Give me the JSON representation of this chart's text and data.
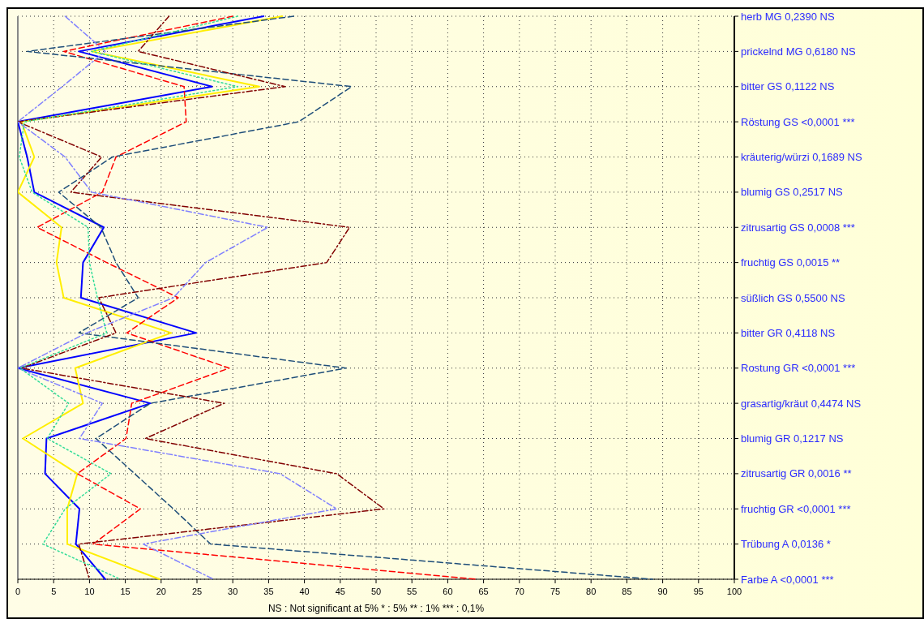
{
  "chart_data": {
    "type": "line",
    "orientation": "horizontal",
    "categories": [
      "herb MG 0,2390 NS",
      "prickelnd MG 0,6180 NS",
      "bitter GS 0,1122 NS",
      "Röstung GS <0,0001 ***",
      "kräuterig/würzi 0,1689 NS",
      "blumig GS 0,2517 NS",
      "zitrusartig GS 0,0008 ***",
      "fruchtig GS 0,0015 **",
      "süßlich GS 0,5500 NS",
      "bitter GR 0,4118 NS",
      "Rostung GR <0,0001 ***",
      "grasartig/kräut 0,4474 NS",
      "blumig GR 0,1217 NS",
      "zitrusartig GR 0,0016 **",
      "fruchtig GR  <0,0001 ***",
      "Trübung A 0,0136 *",
      "Farbe A <0,0001 ***"
    ],
    "series": [
      {
        "color": "#0000ff",
        "line_style": "solid",
        "values": [
          34.3,
          8.5,
          27.1,
          0,
          1.3,
          2.3,
          12,
          9.1,
          8.8,
          24.9,
          0,
          18.5,
          4,
          3.8,
          8.6,
          8.1,
          12.2
        ]
      },
      {
        "color": "#ffee00",
        "line_style": "solid",
        "values": [
          36.9,
          10.3,
          33.7,
          0.5,
          2.3,
          0,
          6.1,
          5.4,
          6.4,
          21.4,
          8,
          9.1,
          0.7,
          8.3,
          6.9,
          6.9,
          19.8
        ]
      },
      {
        "color": "#ff0000",
        "line_style": "dashed",
        "values": [
          30,
          6.4,
          23.2,
          23.5,
          13.7,
          11.8,
          2.7,
          12.4,
          22.4,
          15.2,
          29.5,
          15.9,
          15.1,
          8.3,
          17.1,
          10.5,
          64
        ]
      },
      {
        "color": "#1f4e79",
        "line_style": "dashed",
        "values": [
          38.5,
          1.3,
          46.6,
          39.2,
          13.2,
          5.7,
          11.6,
          13.7,
          16.8,
          8.5,
          45.8,
          18.5,
          10.9,
          16.3,
          21.7,
          26.9,
          88.6
        ]
      },
      {
        "color": "#800000",
        "line_style": "dashdot",
        "values": [
          21.1,
          16.8,
          37.3,
          0,
          11.7,
          7.4,
          46.3,
          43.1,
          11.3,
          13.7,
          0.5,
          28.8,
          17.8,
          44.5,
          51.1,
          8.5,
          10
        ]
      },
      {
        "color": "#8080ff",
        "line_style": "dashdot",
        "values": [
          6.6,
          12.2,
          6.2,
          0,
          6.6,
          10.3,
          34.9,
          26.2,
          21.7,
          9.6,
          0,
          11.8,
          8.6,
          36.6,
          44.5,
          17.5,
          27.3
        ]
      },
      {
        "color": "#33dd99",
        "line_style": "dotted",
        "values": [
          30.7,
          10.3,
          30.7,
          0.9,
          0.2,
          2,
          9.8,
          10,
          11.1,
          12.4,
          0.3,
          7.1,
          4.1,
          13,
          6.6,
          3.5,
          14.3
        ]
      }
    ],
    "xlim": [
      0,
      100
    ],
    "xticks": [
      0,
      5,
      10,
      15,
      20,
      25,
      30,
      35,
      40,
      45,
      50,
      55,
      60,
      65,
      70,
      75,
      80,
      85,
      90,
      95,
      100
    ],
    "grid": true,
    "annotations": [
      "NS : Not significant at 5%  * : 5%  ** : 1%  *** : 0,1%"
    ]
  }
}
